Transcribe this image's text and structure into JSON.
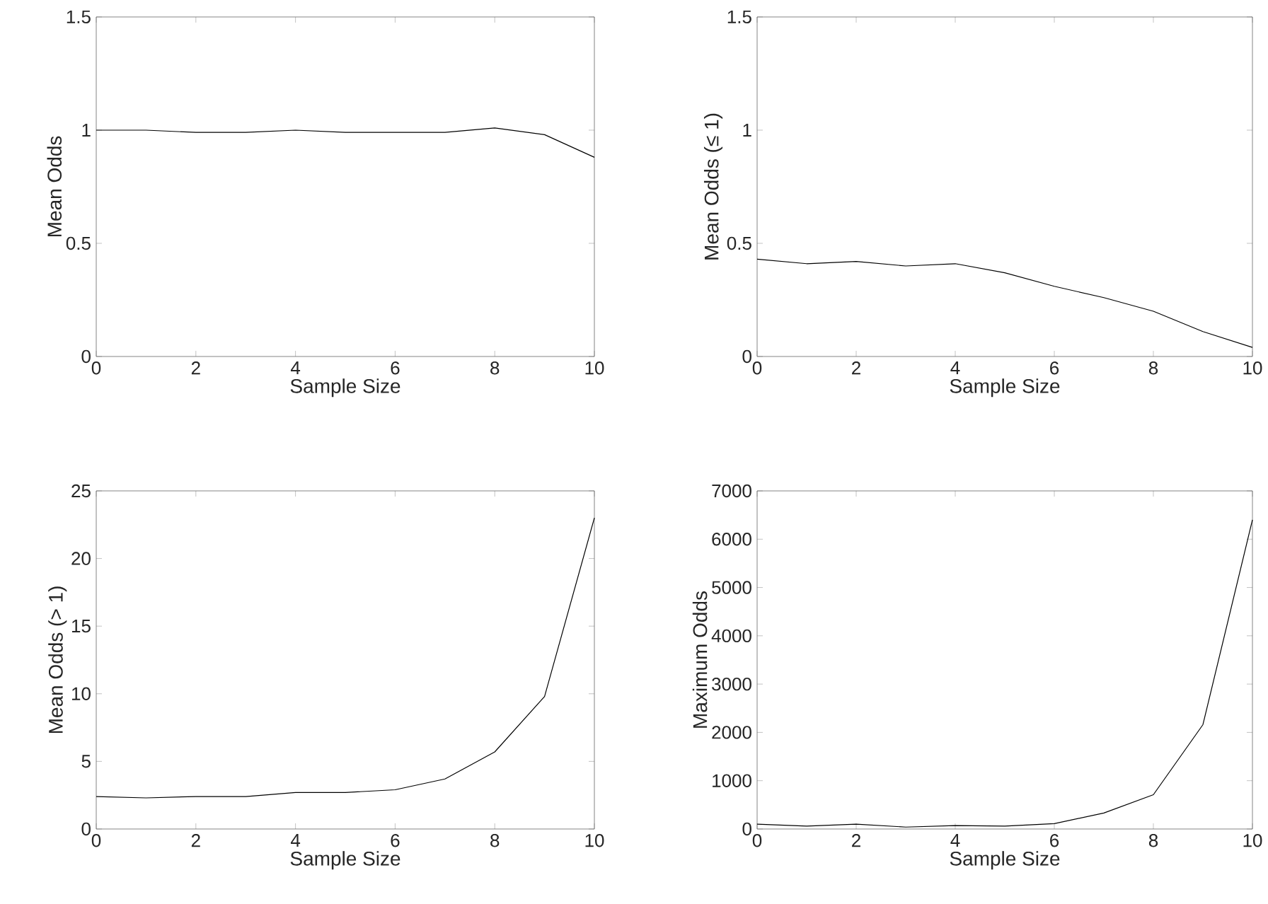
{
  "chart_data": [
    {
      "type": "line",
      "xlabel": "Sample Size",
      "ylabel": "Mean Odds",
      "x": [
        0,
        1,
        2,
        3,
        4,
        5,
        6,
        7,
        8,
        9,
        10
      ],
      "xlim": [
        0,
        10
      ],
      "xticks": [
        0,
        2,
        4,
        6,
        8,
        10
      ],
      "ylim": [
        0,
        1.5
      ],
      "yticks": [
        0,
        0.5,
        1,
        1.5
      ],
      "color": "#000000",
      "values": [
        1.0,
        1.0,
        0.99,
        0.99,
        1.0,
        0.99,
        0.99,
        0.99,
        1.01,
        0.98,
        0.88
      ]
    },
    {
      "type": "line",
      "xlabel": "Sample Size",
      "ylabel": "Mean Odds (≤ 1)",
      "x": [
        0,
        1,
        2,
        3,
        4,
        5,
        6,
        7,
        8,
        9,
        10
      ],
      "xlim": [
        0,
        10
      ],
      "xticks": [
        0,
        2,
        4,
        6,
        8,
        10
      ],
      "ylim": [
        0,
        1.5
      ],
      "yticks": [
        0,
        0.5,
        1,
        1.5
      ],
      "color": "#000000",
      "values": [
        0.43,
        0.41,
        0.42,
        0.4,
        0.41,
        0.37,
        0.31,
        0.26,
        0.2,
        0.11,
        0.04
      ]
    },
    {
      "type": "line",
      "xlabel": "Sample Size",
      "ylabel": "Mean Odds (> 1)",
      "x": [
        0,
        1,
        2,
        3,
        4,
        5,
        6,
        7,
        8,
        9,
        10
      ],
      "xlim": [
        0,
        10
      ],
      "xticks": [
        0,
        2,
        4,
        6,
        8,
        10
      ],
      "ylim": [
        0,
        25
      ],
      "yticks": [
        0,
        5,
        10,
        15,
        20,
        25
      ],
      "color": "#000000",
      "values": [
        2.4,
        2.3,
        2.4,
        2.4,
        2.7,
        2.7,
        2.9,
        3.7,
        5.7,
        9.8,
        23
      ]
    },
    {
      "type": "line",
      "xlabel": "Sample Size",
      "ylabel": "Maximum Odds",
      "x": [
        0,
        1,
        2,
        3,
        4,
        5,
        6,
        7,
        8,
        9,
        10
      ],
      "xlim": [
        0,
        10
      ],
      "xticks": [
        0,
        2,
        4,
        6,
        8,
        10
      ],
      "ylim": [
        0,
        7000
      ],
      "yticks": [
        0,
        1000,
        2000,
        3000,
        4000,
        5000,
        6000,
        7000
      ],
      "color": "#000000",
      "values": [
        100,
        60,
        100,
        40,
        70,
        60,
        110,
        330,
        710,
        2160,
        6400
      ]
    }
  ]
}
